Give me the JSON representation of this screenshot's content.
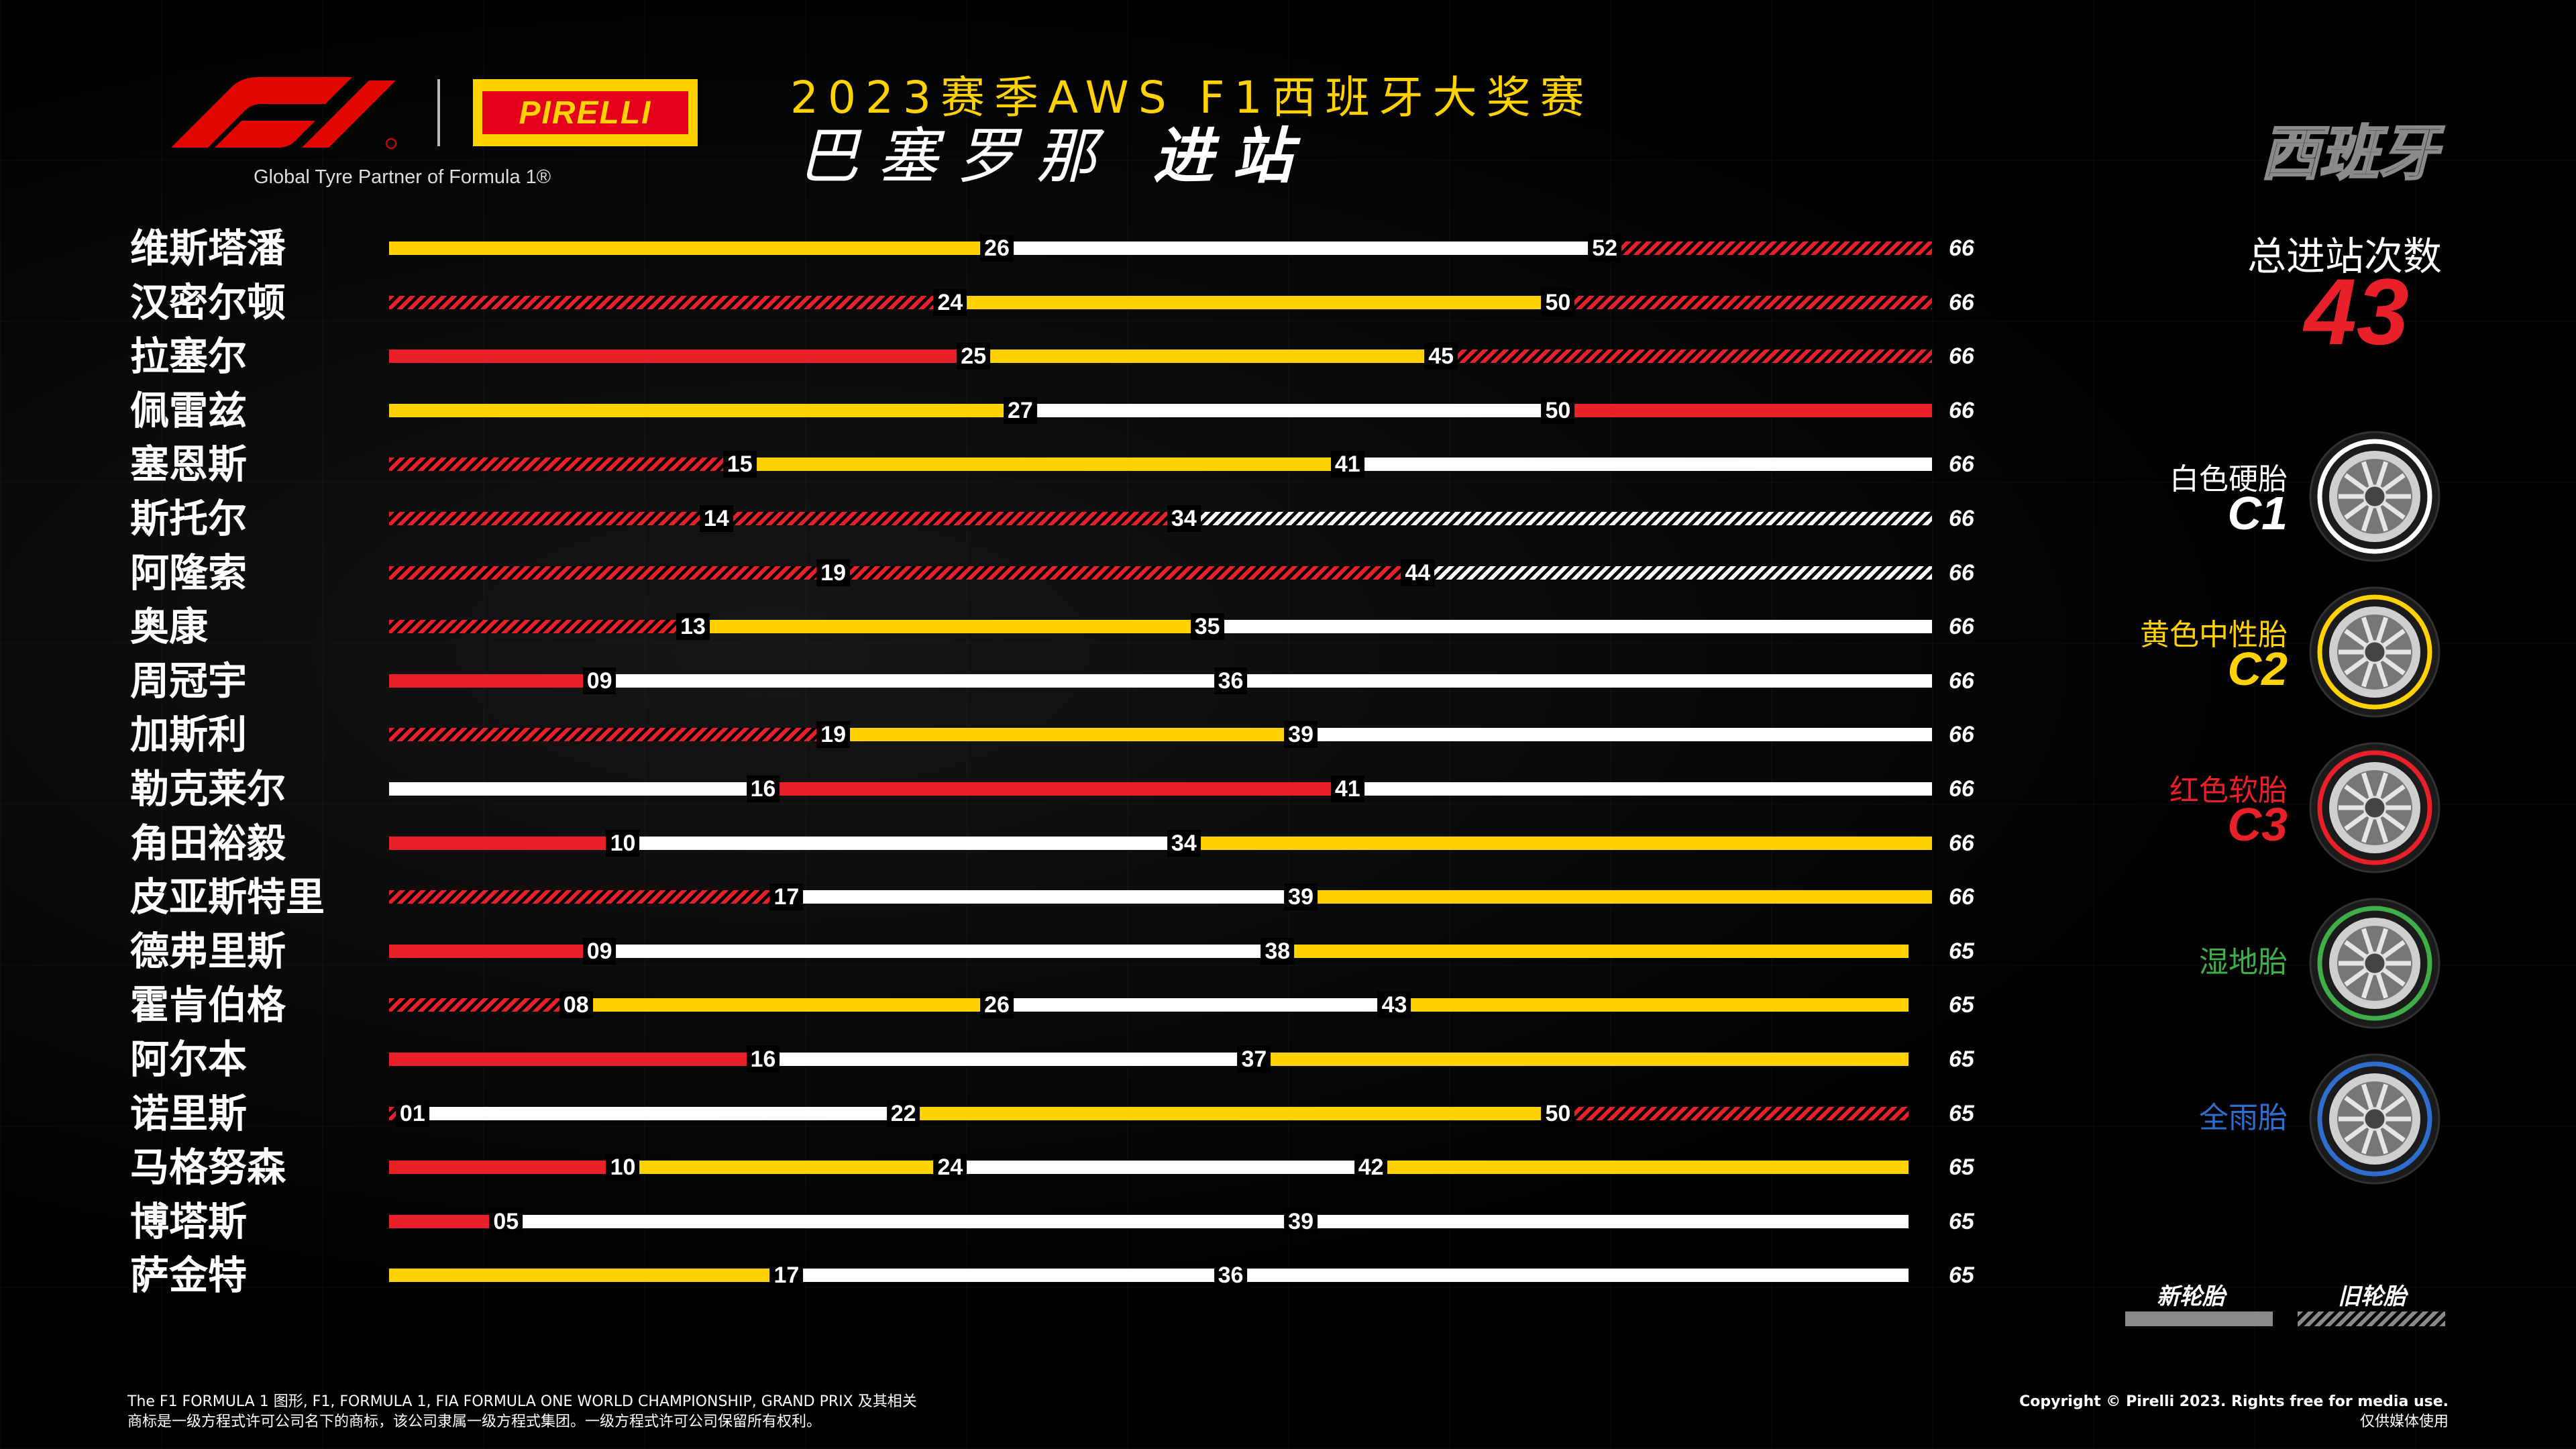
{
  "header": {
    "tagline": "Global Tyre Partner of Formula 1®",
    "pirelli": "PIRELLI",
    "title_line1": "2023赛季AWS F1西班牙大奖赛",
    "title_city": "巴塞罗那",
    "title_suffix": "进站",
    "country_badge": "西班牙"
  },
  "summary": {
    "total_stops_label": "总进站次数",
    "total_stops_value": "43"
  },
  "tyre_legend": [
    {
      "name": "白色硬胎",
      "code": "C1",
      "color": "#ffffff",
      "name_color": "#ffffff"
    },
    {
      "name": "黄色中性胎",
      "code": "C2",
      "color": "#ffd200",
      "name_color": "#ffd200"
    },
    {
      "name": "红色软胎",
      "code": "C3",
      "color": "#e8202a",
      "name_color": "#e8202a"
    },
    {
      "name": "湿地胎",
      "code": "",
      "color": "#3fae49",
      "name_color": "#3fae49"
    },
    {
      "name": "全雨胎",
      "code": "",
      "color": "#2f6ecf",
      "name_color": "#2f6ecf"
    }
  ],
  "condition_legend": {
    "new_label": "新轮胎",
    "used_label": "旧轮胎"
  },
  "colors": {
    "hard": "#ffffff",
    "medium": "#ffd200",
    "soft": "#e8202a",
    "background": "#000000"
  },
  "chart_data": {
    "type": "bar",
    "orientation": "horizontal-stacked-stints",
    "x_unit": "lap",
    "xlim": [
      0,
      66
    ],
    "drivers": [
      {
        "name": "维斯塔潘",
        "total": 66,
        "stints": [
          {
            "compound": "medium",
            "used": false,
            "end": 26,
            "label": "26"
          },
          {
            "compound": "hard",
            "used": false,
            "end": 52,
            "label": "52"
          },
          {
            "compound": "soft",
            "used": true,
            "end": 66,
            "label": ""
          }
        ]
      },
      {
        "name": "汉密尔顿",
        "total": 66,
        "stints": [
          {
            "compound": "soft",
            "used": true,
            "end": 24,
            "label": "24"
          },
          {
            "compound": "medium",
            "used": false,
            "end": 50,
            "label": "50"
          },
          {
            "compound": "soft",
            "used": true,
            "end": 66,
            "label": ""
          }
        ]
      },
      {
        "name": "拉塞尔",
        "total": 66,
        "stints": [
          {
            "compound": "soft",
            "used": false,
            "end": 25,
            "label": "25"
          },
          {
            "compound": "medium",
            "used": false,
            "end": 45,
            "label": "45"
          },
          {
            "compound": "soft",
            "used": true,
            "end": 66,
            "label": ""
          }
        ]
      },
      {
        "name": "佩雷兹",
        "total": 66,
        "stints": [
          {
            "compound": "medium",
            "used": false,
            "end": 27,
            "label": "27"
          },
          {
            "compound": "hard",
            "used": false,
            "end": 50,
            "label": "50"
          },
          {
            "compound": "soft",
            "used": false,
            "end": 66,
            "label": ""
          }
        ]
      },
      {
        "name": "塞恩斯",
        "total": 66,
        "stints": [
          {
            "compound": "soft",
            "used": true,
            "end": 15,
            "label": "15"
          },
          {
            "compound": "medium",
            "used": false,
            "end": 41,
            "label": "41"
          },
          {
            "compound": "hard",
            "used": false,
            "end": 66,
            "label": ""
          }
        ]
      },
      {
        "name": "斯托尔",
        "total": 66,
        "stints": [
          {
            "compound": "soft",
            "used": true,
            "end": 14,
            "label": "14"
          },
          {
            "compound": "soft",
            "used": true,
            "end": 34,
            "label": "34"
          },
          {
            "compound": "hard",
            "used": true,
            "end": 66,
            "label": ""
          }
        ]
      },
      {
        "name": "阿隆索",
        "total": 66,
        "stints": [
          {
            "compound": "soft",
            "used": true,
            "end": 19,
            "label": "19"
          },
          {
            "compound": "soft",
            "used": true,
            "end": 44,
            "label": "44"
          },
          {
            "compound": "hard",
            "used": true,
            "end": 66,
            "label": ""
          }
        ]
      },
      {
        "name": "奥康",
        "total": 66,
        "stints": [
          {
            "compound": "soft",
            "used": true,
            "end": 13,
            "label": "13"
          },
          {
            "compound": "medium",
            "used": false,
            "end": 35,
            "label": "35"
          },
          {
            "compound": "hard",
            "used": false,
            "end": 66,
            "label": ""
          }
        ]
      },
      {
        "name": "周冠宇",
        "total": 66,
        "stints": [
          {
            "compound": "soft",
            "used": false,
            "end": 9,
            "label": "09"
          },
          {
            "compound": "hard",
            "used": false,
            "end": 36,
            "label": "36"
          },
          {
            "compound": "hard",
            "used": false,
            "end": 66,
            "label": ""
          }
        ]
      },
      {
        "name": "加斯利",
        "total": 66,
        "stints": [
          {
            "compound": "soft",
            "used": true,
            "end": 19,
            "label": "19"
          },
          {
            "compound": "medium",
            "used": false,
            "end": 39,
            "label": "39"
          },
          {
            "compound": "hard",
            "used": false,
            "end": 66,
            "label": ""
          }
        ]
      },
      {
        "name": "勒克莱尔",
        "total": 66,
        "stints": [
          {
            "compound": "hard",
            "used": false,
            "end": 16,
            "label": "16"
          },
          {
            "compound": "soft",
            "used": false,
            "end": 41,
            "label": "41"
          },
          {
            "compound": "hard",
            "used": false,
            "end": 66,
            "label": ""
          }
        ]
      },
      {
        "name": "角田裕毅",
        "total": 66,
        "stints": [
          {
            "compound": "soft",
            "used": false,
            "end": 10,
            "label": "10"
          },
          {
            "compound": "hard",
            "used": false,
            "end": 34,
            "label": "34"
          },
          {
            "compound": "medium",
            "used": false,
            "end": 66,
            "label": ""
          }
        ]
      },
      {
        "name": "皮亚斯特里",
        "total": 66,
        "stints": [
          {
            "compound": "soft",
            "used": true,
            "end": 17,
            "label": "17"
          },
          {
            "compound": "hard",
            "used": false,
            "end": 39,
            "label": "39"
          },
          {
            "compound": "medium",
            "used": false,
            "end": 66,
            "label": ""
          }
        ]
      },
      {
        "name": "德弗里斯",
        "total": 65,
        "stints": [
          {
            "compound": "soft",
            "used": false,
            "end": 9,
            "label": "09"
          },
          {
            "compound": "hard",
            "used": false,
            "end": 38,
            "label": "38"
          },
          {
            "compound": "medium",
            "used": false,
            "end": 65,
            "label": ""
          }
        ]
      },
      {
        "name": "霍肯伯格",
        "total": 65,
        "stints": [
          {
            "compound": "soft",
            "used": true,
            "end": 8,
            "label": "08"
          },
          {
            "compound": "medium",
            "used": false,
            "end": 26,
            "label": "26"
          },
          {
            "compound": "hard",
            "used": false,
            "end": 43,
            "label": "43"
          },
          {
            "compound": "medium",
            "used": false,
            "end": 65,
            "label": ""
          }
        ]
      },
      {
        "name": "阿尔本",
        "total": 65,
        "stints": [
          {
            "compound": "soft",
            "used": false,
            "end": 16,
            "label": "16"
          },
          {
            "compound": "hard",
            "used": false,
            "end": 37,
            "label": "37"
          },
          {
            "compound": "medium",
            "used": false,
            "end": 65,
            "label": ""
          }
        ]
      },
      {
        "name": "诺里斯",
        "total": 65,
        "stints": [
          {
            "compound": "soft",
            "used": true,
            "end": 1,
            "label": "01"
          },
          {
            "compound": "hard",
            "used": false,
            "end": 22,
            "label": "22"
          },
          {
            "compound": "medium",
            "used": false,
            "end": 50,
            "label": "50"
          },
          {
            "compound": "soft",
            "used": true,
            "end": 65,
            "label": ""
          }
        ]
      },
      {
        "name": "马格努森",
        "total": 65,
        "stints": [
          {
            "compound": "soft",
            "used": false,
            "end": 10,
            "label": "10"
          },
          {
            "compound": "medium",
            "used": false,
            "end": 24,
            "label": "24"
          },
          {
            "compound": "hard",
            "used": false,
            "end": 42,
            "label": "42"
          },
          {
            "compound": "medium",
            "used": false,
            "end": 65,
            "label": ""
          }
        ]
      },
      {
        "name": "博塔斯",
        "total": 65,
        "stints": [
          {
            "compound": "soft",
            "used": false,
            "end": 5,
            "label": "05"
          },
          {
            "compound": "hard",
            "used": false,
            "end": 39,
            "label": "39"
          },
          {
            "compound": "hard",
            "used": false,
            "end": 65,
            "label": ""
          }
        ]
      },
      {
        "name": "萨金特",
        "total": 65,
        "stints": [
          {
            "compound": "medium",
            "used": false,
            "end": 17,
            "label": "17"
          },
          {
            "compound": "hard",
            "used": false,
            "end": 36,
            "label": "36"
          },
          {
            "compound": "hard",
            "used": false,
            "end": 65,
            "label": ""
          }
        ]
      }
    ]
  },
  "footer": {
    "left_line1": "The F1 FORMULA 1 图形, F1, FORMULA 1, FIA FORMULA ONE WORLD CHAMPIONSHIP, GRAND PRIX 及其相关",
    "left_line2": "商标是一级方程式许可公司名下的商标，该公司隶属一级方程式集团。一级方程式许可公司保留所有权利。",
    "right_line1": "Copyright © Pirelli 2023. Rights free for media use.",
    "right_line2": "仅供媒体使用"
  }
}
